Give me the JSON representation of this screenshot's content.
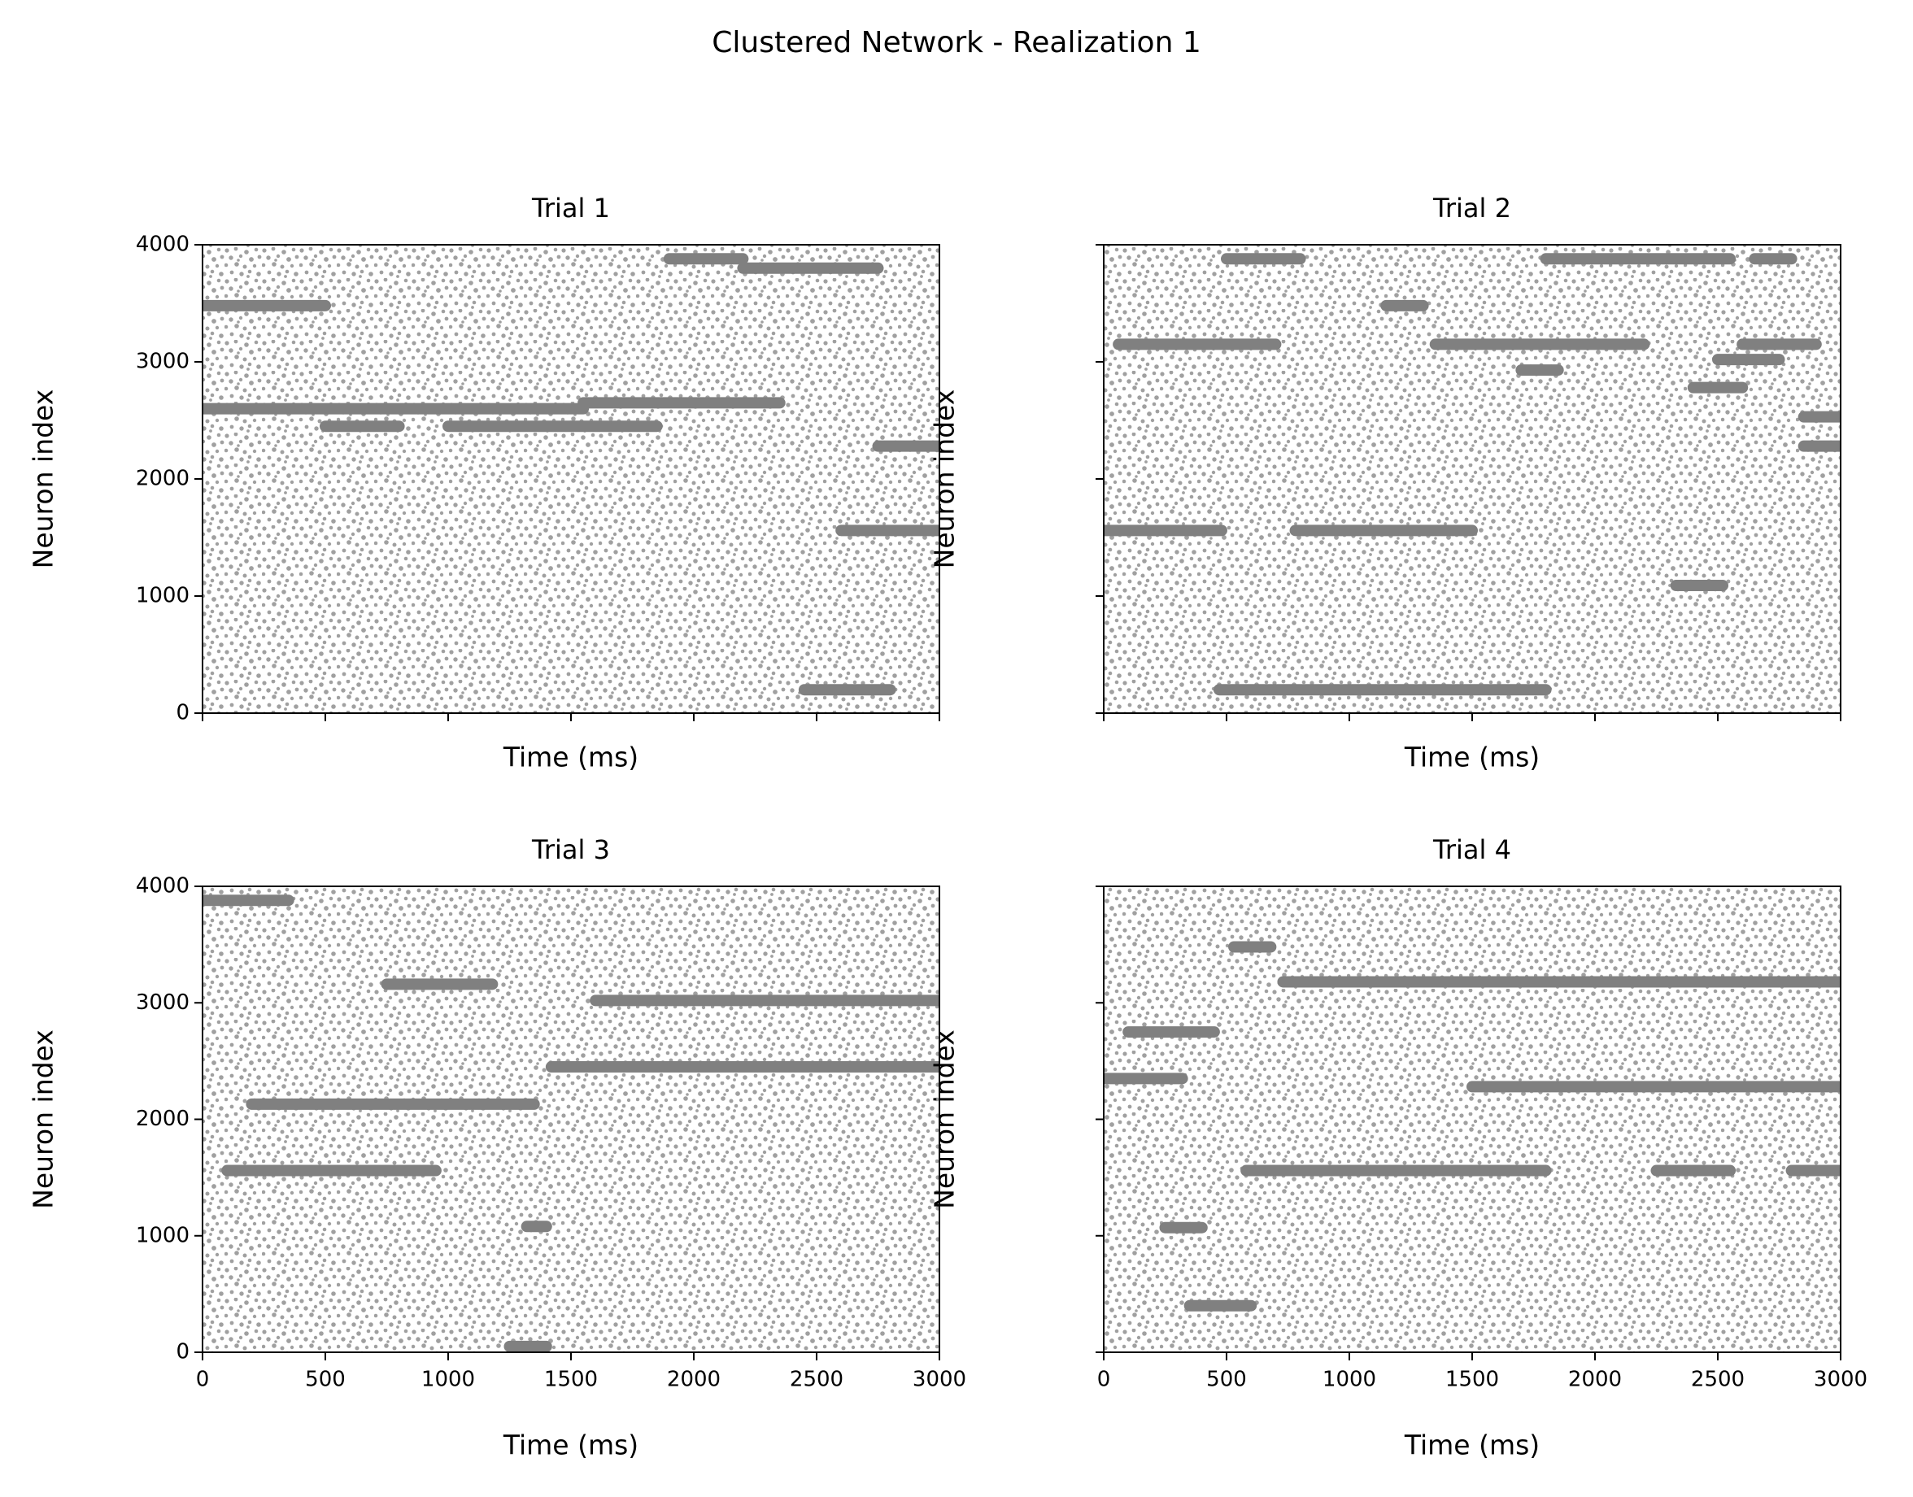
{
  "title": "Clustered Network - Realization 1",
  "chart_data": [
    {
      "type": "raster",
      "title": "Trial 1",
      "x_label": "Time (ms)",
      "y_label": "Neuron index",
      "xlim": [
        0,
        3000
      ],
      "ylim": [
        0,
        4000
      ],
      "xticks": [
        0,
        500,
        1000,
        1500,
        2000,
        2500,
        3000
      ],
      "yticks": [
        0,
        1000,
        2000,
        3000,
        4000
      ],
      "xticklabels": false,
      "yticklabels": true,
      "color": "#808080",
      "segments": [
        {
          "neuron": 3480,
          "start": 0,
          "end": 500
        },
        {
          "neuron": 2600,
          "start": 0,
          "end": 1550
        },
        {
          "neuron": 2450,
          "start": 500,
          "end": 800
        },
        {
          "neuron": 2450,
          "start": 1000,
          "end": 1500
        },
        {
          "neuron": 2450,
          "start": 1500,
          "end": 1850
        },
        {
          "neuron": 2650,
          "start": 1550,
          "end": 2350
        },
        {
          "neuron": 3880,
          "start": 1900,
          "end": 2200
        },
        {
          "neuron": 3800,
          "start": 2200,
          "end": 2750
        },
        {
          "neuron": 2280,
          "start": 2750,
          "end": 3000
        },
        {
          "neuron": 1560,
          "start": 2600,
          "end": 3000
        },
        {
          "neuron": 200,
          "start": 2450,
          "end": 2800
        }
      ]
    },
    {
      "type": "raster",
      "title": "Trial 2",
      "x_label": "Time (ms)",
      "y_label": "Neuron index",
      "xlim": [
        0,
        3000
      ],
      "ylim": [
        0,
        4000
      ],
      "xticks": [
        0,
        500,
        1000,
        1500,
        2000,
        2500,
        3000
      ],
      "yticks": [
        0,
        1000,
        2000,
        3000,
        4000
      ],
      "xticklabels": false,
      "yticklabels": false,
      "color": "#808080",
      "segments": [
        {
          "neuron": 3880,
          "start": 500,
          "end": 800
        },
        {
          "neuron": 3880,
          "start": 1800,
          "end": 2550
        },
        {
          "neuron": 3880,
          "start": 2650,
          "end": 2800
        },
        {
          "neuron": 3150,
          "start": 60,
          "end": 700
        },
        {
          "neuron": 3150,
          "start": 1350,
          "end": 2200
        },
        {
          "neuron": 3480,
          "start": 1150,
          "end": 1300
        },
        {
          "neuron": 2930,
          "start": 1700,
          "end": 1850
        },
        {
          "neuron": 3020,
          "start": 2500,
          "end": 2750
        },
        {
          "neuron": 3150,
          "start": 2600,
          "end": 2900
        },
        {
          "neuron": 2780,
          "start": 2400,
          "end": 2600
        },
        {
          "neuron": 2530,
          "start": 2850,
          "end": 3000
        },
        {
          "neuron": 2280,
          "start": 2850,
          "end": 3000
        },
        {
          "neuron": 1560,
          "start": 0,
          "end": 480
        },
        {
          "neuron": 1560,
          "start": 780,
          "end": 1500
        },
        {
          "neuron": 1090,
          "start": 2330,
          "end": 2520
        },
        {
          "neuron": 200,
          "start": 470,
          "end": 1800
        }
      ]
    },
    {
      "type": "raster",
      "title": "Trial 3",
      "x_label": "Time (ms)",
      "y_label": "Neuron index",
      "xlim": [
        0,
        3000
      ],
      "ylim": [
        0,
        4000
      ],
      "xticks": [
        0,
        500,
        1000,
        1500,
        2000,
        2500,
        3000
      ],
      "yticks": [
        0,
        1000,
        2000,
        3000,
        4000
      ],
      "xticklabels": true,
      "yticklabels": true,
      "color": "#808080",
      "segments": [
        {
          "neuron": 3880,
          "start": 0,
          "end": 350
        },
        {
          "neuron": 3160,
          "start": 750,
          "end": 1180
        },
        {
          "neuron": 3020,
          "start": 1600,
          "end": 3000
        },
        {
          "neuron": 2450,
          "start": 1420,
          "end": 3000
        },
        {
          "neuron": 2130,
          "start": 200,
          "end": 1350
        },
        {
          "neuron": 1560,
          "start": 100,
          "end": 950
        },
        {
          "neuron": 1080,
          "start": 1320,
          "end": 1400
        },
        {
          "neuron": 50,
          "start": 1250,
          "end": 1400
        }
      ]
    },
    {
      "type": "raster",
      "title": "Trial 4",
      "x_label": "Time (ms)",
      "y_label": "Neuron index",
      "xlim": [
        0,
        3000
      ],
      "ylim": [
        0,
        4000
      ],
      "xticks": [
        0,
        500,
        1000,
        1500,
        2000,
        2500,
        3000
      ],
      "yticks": [
        0,
        1000,
        2000,
        3000,
        4000
      ],
      "xticklabels": true,
      "yticklabels": false,
      "color": "#808080",
      "segments": [
        {
          "neuron": 3480,
          "start": 530,
          "end": 680
        },
        {
          "neuron": 3180,
          "start": 730,
          "end": 3000
        },
        {
          "neuron": 2750,
          "start": 100,
          "end": 450
        },
        {
          "neuron": 2350,
          "start": 0,
          "end": 320
        },
        {
          "neuron": 2280,
          "start": 1500,
          "end": 3000
        },
        {
          "neuron": 1560,
          "start": 580,
          "end": 1800
        },
        {
          "neuron": 1560,
          "start": 2250,
          "end": 2550
        },
        {
          "neuron": 1560,
          "start": 2800,
          "end": 3000
        },
        {
          "neuron": 1070,
          "start": 250,
          "end": 400
        },
        {
          "neuron": 400,
          "start": 350,
          "end": 600
        }
      ]
    }
  ]
}
